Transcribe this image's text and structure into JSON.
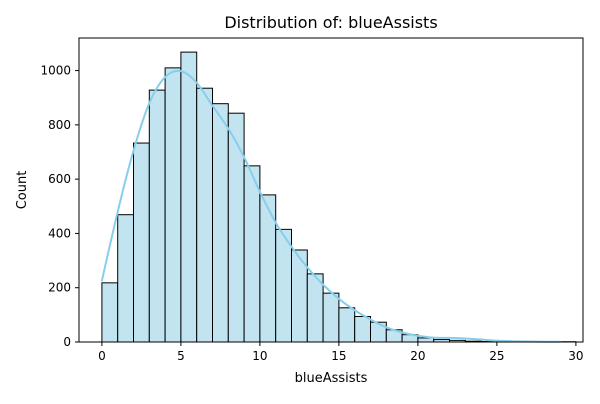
{
  "colors": {
    "bar_fill": "#c1e4f0",
    "bar_stroke": "#000000",
    "kde_line": "#87ceeb",
    "axis": "#000000"
  },
  "chart_data": {
    "type": "bar",
    "title": "Distribution of: blueAssists",
    "xlabel": "blueAssists",
    "ylabel": "Count",
    "xlim": [
      -1.45,
      30.45
    ],
    "ylim": [
      0,
      1120
    ],
    "x_ticks": [
      0,
      5,
      10,
      15,
      20,
      25,
      30
    ],
    "y_ticks": [
      0,
      200,
      400,
      600,
      800,
      1000
    ],
    "grid": false,
    "bins": {
      "start": 0,
      "width": 1,
      "counts": [
        218,
        469,
        733,
        928,
        1010,
        1068,
        935,
        878,
        843,
        649,
        542,
        415,
        339,
        251,
        180,
        126,
        94,
        73,
        45,
        27,
        15,
        9,
        6,
        3,
        2,
        2,
        1,
        1,
        0,
        1
      ]
    },
    "kde": {
      "x": [
        0,
        1,
        2,
        3,
        4,
        5,
        6,
        7,
        8,
        9,
        10,
        11,
        12,
        13,
        14,
        15,
        16,
        17,
        18,
        19,
        20,
        21,
        22,
        23,
        24,
        25,
        26,
        27,
        28,
        29
      ],
      "y": [
        226,
        480,
        705,
        880,
        976,
        998,
        955,
        870,
        786,
        681,
        554,
        440,
        351,
        275,
        211,
        159,
        117,
        83,
        54,
        35,
        23,
        16,
        15,
        13,
        9,
        5,
        3,
        2,
        1,
        1
      ]
    }
  }
}
